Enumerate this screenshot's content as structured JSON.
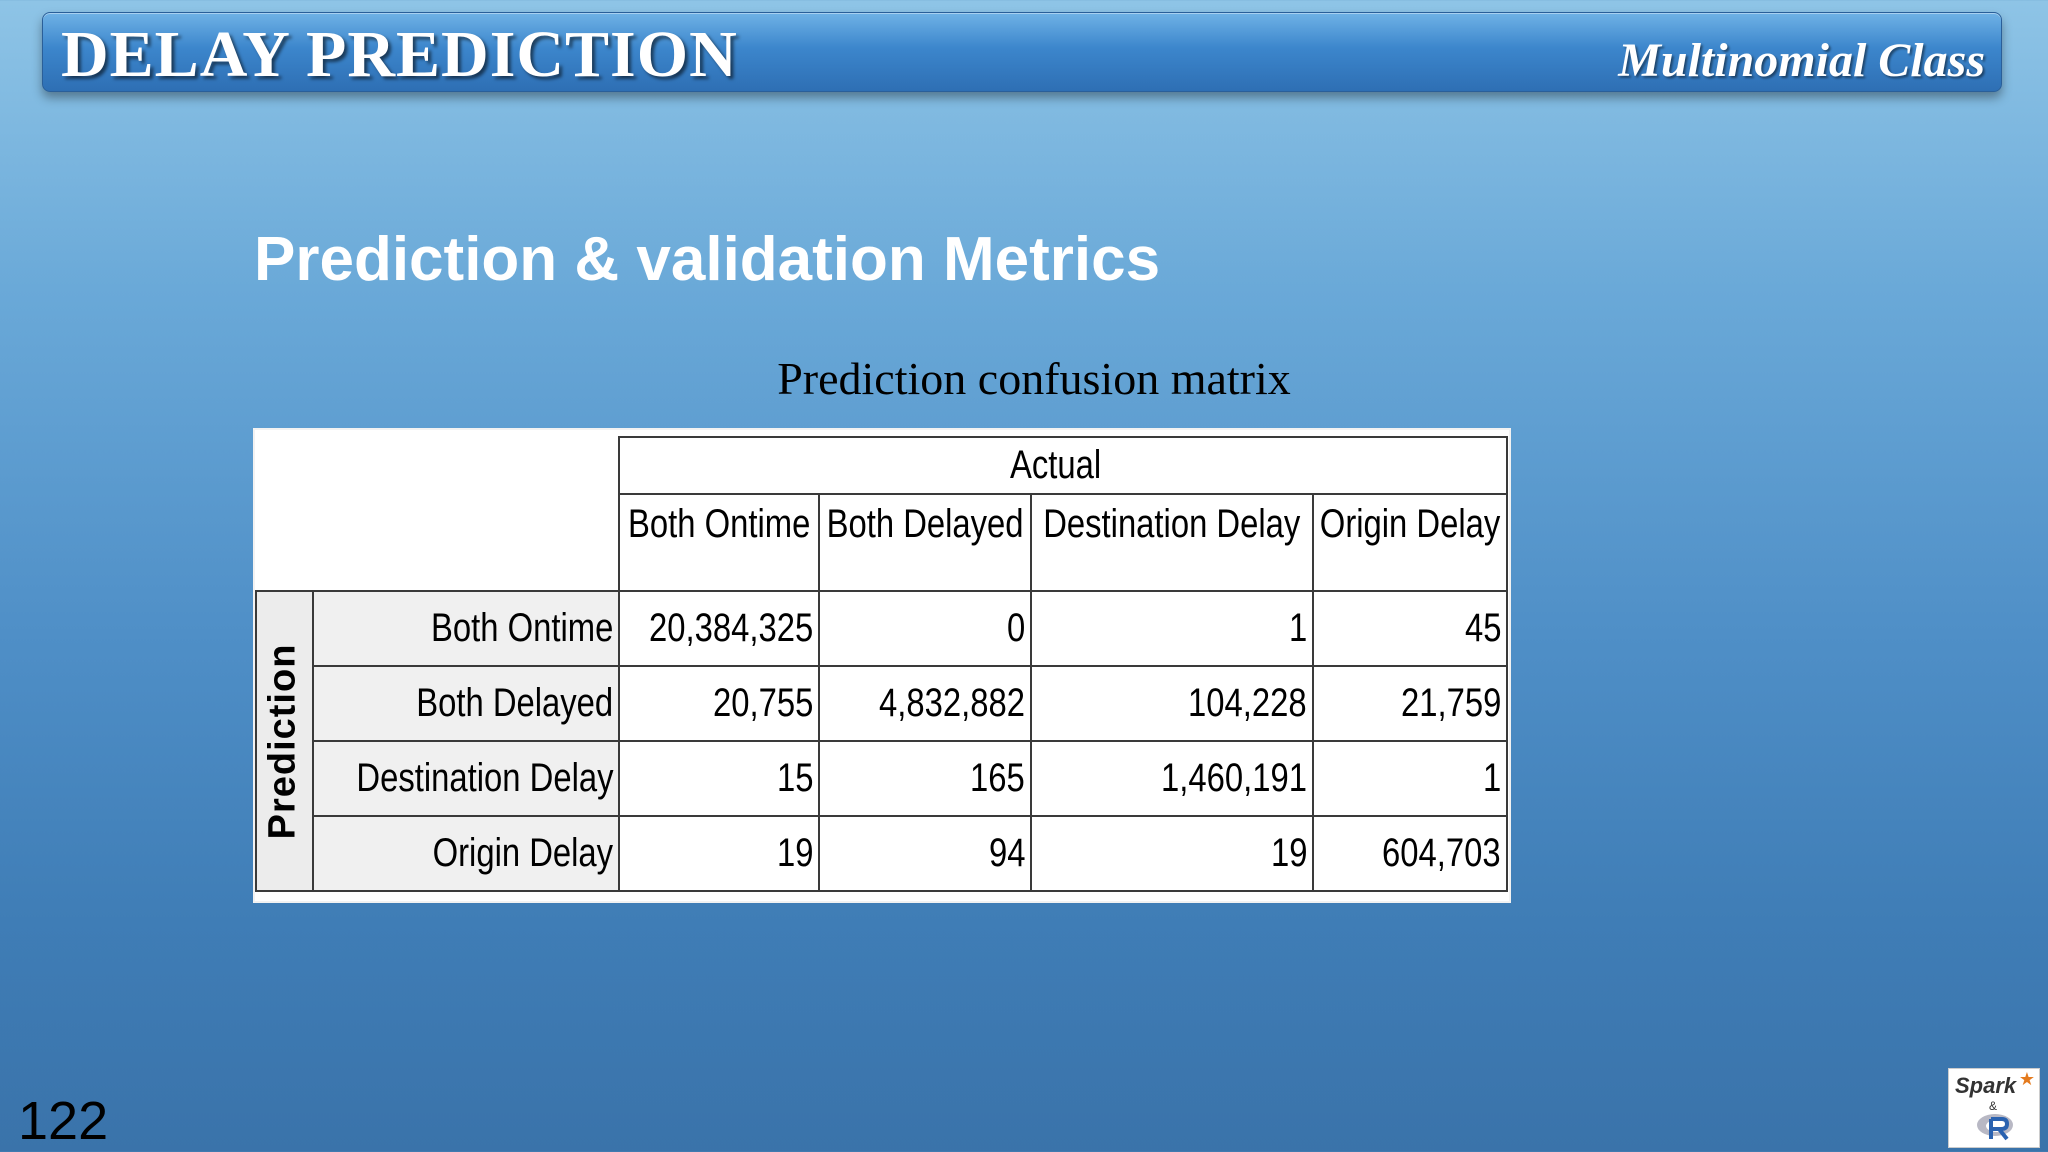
{
  "banner": {
    "title": "DELAY PREDICTION",
    "subtitle": "Multinomial Class"
  },
  "heading": "Prediction & validation Metrics",
  "caption": "Prediction confusion matrix",
  "matrix": {
    "actual_label": "Actual",
    "prediction_label": "Prediction",
    "columns": [
      "Both Ontime",
      "Both Delayed",
      "Destination  Delay",
      "Origin Delay"
    ],
    "rows": [
      {
        "label": "Both Ontime",
        "values": [
          "20,384,325",
          "0",
          "1",
          "45"
        ]
      },
      {
        "label": "Both Delayed",
        "values": [
          "20,755",
          "4,832,882",
          "104,228",
          "21,759"
        ]
      },
      {
        "label": "Destination  Delay",
        "values": [
          "15",
          "165",
          "1,460,191",
          "1"
        ]
      },
      {
        "label": "Origin Delay",
        "values": [
          "19",
          "94",
          "19",
          "604,703"
        ]
      }
    ]
  },
  "page_number": "122",
  "logo": {
    "spark_text": "Spark",
    "amp_text": "&",
    "icon": "spark-r-logo"
  },
  "colors": {
    "banner": "#3c86cc",
    "background_top": "#8ec4e6",
    "background_bottom": "#3a73aa",
    "header_gray": "#ececec"
  }
}
